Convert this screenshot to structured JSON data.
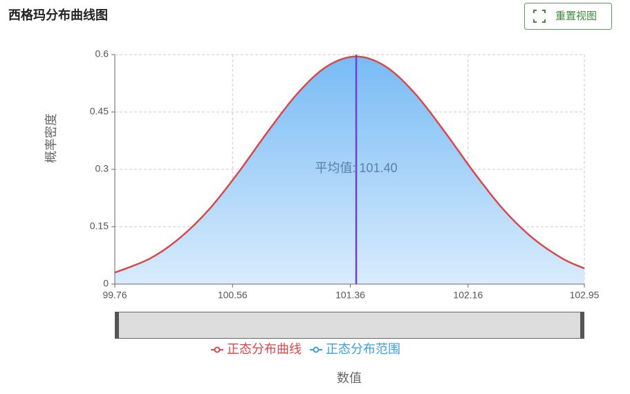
{
  "chart_data": {
    "type": "line",
    "title": "西格玛分布曲线图",
    "reset_button": "重置视图",
    "x_label": "数值",
    "y_label": "概率密度",
    "x": [
      99.76,
      100.0,
      100.2,
      100.4,
      100.6,
      100.8,
      101.0,
      101.2,
      101.4,
      101.6,
      101.8,
      102.0,
      102.2,
      102.4,
      102.6,
      102.8,
      102.95
    ],
    "series": [
      {
        "name": "正态分布曲线",
        "color": "#d9474a",
        "values": [
          0.03,
          0.067,
          0.12,
          0.195,
          0.292,
          0.399,
          0.498,
          0.569,
          0.595,
          0.569,
          0.498,
          0.399,
          0.292,
          0.195,
          0.12,
          0.067,
          0.041
        ]
      }
    ],
    "range_legend": {
      "name": "正态分布范围",
      "color": "#3a9fe0"
    },
    "mean": {
      "value": 101.4,
      "label": "平均值: 101.40",
      "color": "#6b42c9"
    },
    "xlim": [
      99.76,
      102.95
    ],
    "xticks": [
      99.76,
      100.56,
      101.36,
      102.16,
      102.95
    ],
    "ylim": [
      0,
      0.6
    ],
    "yticks": [
      0,
      0.15,
      0.3,
      0.45,
      0.6
    ],
    "grid": true
  }
}
